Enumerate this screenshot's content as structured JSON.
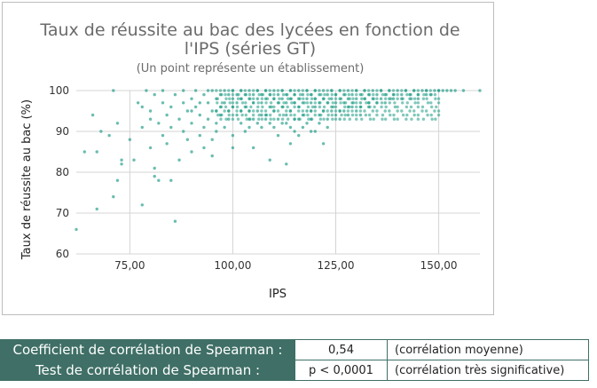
{
  "chart_data": {
    "type": "scatter",
    "title_lines": [
      "Taux de réussite au bac des lycées en fonction de",
      "l'IPS (séries GT)"
    ],
    "subtitle": "(Un point représente un établissement)",
    "xlabel": "IPS",
    "ylabel": "Taux de réussite au bac (%)",
    "x_ticks": [
      "75,00",
      "100,00",
      "125,00",
      "150,00"
    ],
    "x_tick_values": [
      75,
      100,
      125,
      150
    ],
    "y_ticks": [
      "60",
      "70",
      "80",
      "90",
      "100"
    ],
    "y_tick_values": [
      60,
      70,
      80,
      90,
      100
    ],
    "xlim": [
      62,
      160
    ],
    "ylim": [
      60,
      100
    ],
    "grid": true,
    "point_color": "#1a9a84",
    "points": [
      [
        62,
        66
      ],
      [
        64,
        85
      ],
      [
        66,
        94
      ],
      [
        67,
        71
      ],
      [
        67,
        85
      ],
      [
        68,
        90
      ],
      [
        70,
        89
      ],
      [
        71,
        74
      ],
      [
        72,
        78
      ],
      [
        73,
        82
      ],
      [
        73,
        83
      ],
      [
        72,
        92
      ],
      [
        71,
        100
      ],
      [
        75,
        88
      ],
      [
        76,
        83
      ],
      [
        77,
        97
      ],
      [
        78,
        96
      ],
      [
        78,
        91
      ],
      [
        78,
        72
      ],
      [
        79,
        100
      ],
      [
        80,
        95
      ],
      [
        80,
        93
      ],
      [
        80,
        86
      ],
      [
        81,
        79
      ],
      [
        81,
        81
      ],
      [
        81,
        99
      ],
      [
        82,
        92
      ],
      [
        82,
        78
      ],
      [
        83,
        89
      ],
      [
        83,
        97
      ],
      [
        83,
        100
      ],
      [
        84,
        94
      ],
      [
        84,
        87
      ],
      [
        85,
        78
      ],
      [
        85,
        91
      ],
      [
        85,
        96
      ],
      [
        86,
        68
      ],
      [
        86,
        99
      ],
      [
        87,
        93
      ],
      [
        87,
        83
      ],
      [
        88,
        97
      ],
      [
        88,
        90
      ],
      [
        88,
        100
      ],
      [
        89,
        95
      ],
      [
        89,
        88
      ],
      [
        90,
        92
      ],
      [
        90,
        98
      ],
      [
        90,
        85
      ],
      [
        91,
        96
      ],
      [
        91,
        100
      ],
      [
        92,
        89
      ],
      [
        92,
        94
      ],
      [
        93,
        99
      ],
      [
        93,
        91
      ],
      [
        93,
        86
      ],
      [
        94,
        97
      ],
      [
        94,
        93
      ],
      [
        95,
        100
      ],
      [
        95,
        95
      ],
      [
        95,
        88
      ],
      [
        96,
        98
      ],
      [
        96,
        92
      ],
      [
        96,
        90
      ],
      [
        97,
        99
      ],
      [
        97,
        96
      ],
      [
        97,
        94
      ],
      [
        98,
        100
      ],
      [
        98,
        97
      ],
      [
        98,
        91
      ],
      [
        99,
        99
      ],
      [
        99,
        95
      ],
      [
        99,
        93
      ],
      [
        100,
        100
      ],
      [
        100,
        98
      ],
      [
        100,
        96
      ],
      [
        100,
        89
      ],
      [
        101,
        99
      ],
      [
        101,
        97
      ],
      [
        101,
        94
      ],
      [
        102,
        100
      ],
      [
        102,
        98
      ],
      [
        102,
        92
      ],
      [
        103,
        99
      ],
      [
        103,
        96
      ],
      [
        103,
        90
      ],
      [
        104,
        100
      ],
      [
        104,
        98
      ],
      [
        104,
        95
      ],
      [
        105,
        99
      ],
      [
        105,
        97
      ],
      [
        105,
        93
      ],
      [
        105,
        86
      ],
      [
        106,
        100
      ],
      [
        106,
        98
      ],
      [
        106,
        95
      ],
      [
        107,
        99
      ],
      [
        107,
        97
      ],
      [
        107,
        91
      ],
      [
        108,
        100
      ],
      [
        108,
        98
      ],
      [
        108,
        94
      ],
      [
        109,
        99
      ],
      [
        109,
        96
      ],
      [
        109,
        92
      ],
      [
        109,
        83
      ],
      [
        110,
        100
      ],
      [
        110,
        98
      ],
      [
        110,
        95
      ],
      [
        111,
        99
      ],
      [
        111,
        97
      ],
      [
        111,
        93
      ],
      [
        111,
        89
      ],
      [
        112,
        100
      ],
      [
        112,
        98
      ],
      [
        112,
        96
      ],
      [
        113,
        99
      ],
      [
        113,
        97
      ],
      [
        113,
        94
      ],
      [
        113,
        82
      ],
      [
        114,
        100
      ],
      [
        114,
        98
      ],
      [
        114,
        95
      ],
      [
        114,
        91
      ],
      [
        115,
        99
      ],
      [
        115,
        97
      ],
      [
        115,
        93
      ],
      [
        116,
        100
      ],
      [
        116,
        98
      ],
      [
        116,
        96
      ],
      [
        116,
        89
      ],
      [
        117,
        99
      ],
      [
        117,
        97
      ],
      [
        117,
        94
      ],
      [
        118,
        100
      ],
      [
        118,
        98
      ],
      [
        118,
        95
      ],
      [
        118,
        92
      ],
      [
        119,
        99
      ],
      [
        119,
        97
      ],
      [
        119,
        93
      ],
      [
        120,
        100
      ],
      [
        120,
        98
      ],
      [
        120,
        96
      ],
      [
        120,
        90
      ],
      [
        121,
        99
      ],
      [
        121,
        97
      ],
      [
        121,
        94
      ],
      [
        122,
        100
      ],
      [
        122,
        98
      ],
      [
        122,
        95
      ],
      [
        122,
        87
      ],
      [
        123,
        99
      ],
      [
        123,
        97
      ],
      [
        123,
        93
      ],
      [
        124,
        100
      ],
      [
        124,
        98
      ],
      [
        124,
        96
      ],
      [
        125,
        99
      ],
      [
        125,
        97
      ],
      [
        125,
        94
      ],
      [
        126,
        100
      ],
      [
        126,
        98
      ],
      [
        126,
        95
      ],
      [
        127,
        99
      ],
      [
        127,
        97
      ],
      [
        128,
        100
      ],
      [
        128,
        98
      ],
      [
        128,
        96
      ],
      [
        129,
        99
      ],
      [
        129,
        97
      ],
      [
        130,
        100
      ],
      [
        130,
        98
      ],
      [
        130,
        95
      ],
      [
        131,
        99
      ],
      [
        131,
        97
      ],
      [
        132,
        100
      ],
      [
        132,
        98
      ],
      [
        133,
        99
      ],
      [
        133,
        97
      ],
      [
        134,
        100
      ],
      [
        134,
        98
      ],
      [
        135,
        99
      ],
      [
        136,
        100
      ],
      [
        136,
        98
      ],
      [
        137,
        99
      ],
      [
        138,
        100
      ],
      [
        138,
        98
      ],
      [
        139,
        99
      ],
      [
        140,
        100
      ],
      [
        141,
        99
      ],
      [
        142,
        100
      ],
      [
        143,
        99
      ],
      [
        144,
        100
      ],
      [
        145,
        99
      ],
      [
        146,
        100
      ],
      [
        147,
        100
      ],
      [
        148,
        99
      ],
      [
        149,
        100
      ],
      [
        150,
        100
      ],
      [
        151,
        100
      ],
      [
        152,
        100
      ],
      [
        153,
        100
      ],
      [
        154,
        100
      ],
      [
        156,
        100
      ],
      [
        160,
        100
      ],
      [
        104,
        91
      ],
      [
        106,
        92
      ],
      [
        108,
        93
      ],
      [
        110,
        91
      ],
      [
        112,
        92
      ],
      [
        115,
        90
      ],
      [
        117,
        91
      ],
      [
        119,
        90
      ],
      [
        121,
        92
      ],
      [
        123,
        91
      ],
      [
        126,
        93
      ],
      [
        128,
        94
      ],
      [
        96,
        95
      ],
      [
        94,
        100
      ],
      [
        92,
        97
      ],
      [
        90,
        95
      ],
      [
        102,
        95
      ],
      [
        104,
        93
      ],
      [
        107,
        94
      ],
      [
        113,
        92
      ],
      [
        116,
        93
      ],
      [
        119,
        95
      ],
      [
        124,
        95
      ],
      [
        127,
        95
      ],
      [
        129,
        96
      ],
      [
        131,
        96
      ],
      [
        133,
        96
      ],
      [
        135,
        97
      ],
      [
        137,
        97
      ],
      [
        139,
        98
      ],
      [
        141,
        98
      ],
      [
        143,
        98
      ],
      [
        145,
        98
      ],
      [
        147,
        99
      ],
      [
        114,
        87
      ],
      [
        100,
        86
      ],
      [
        95,
        84
      ],
      [
        131,
        94
      ]
    ]
  },
  "stats": {
    "rows": [
      {
        "label": "Coefficient de corrélation de Spearman :",
        "value": "0,54",
        "note": "(corrélation moyenne)"
      },
      {
        "label": "Test de corrélation de Spearman :",
        "value": "p < 0,0001",
        "note": "(corrélation très significative)"
      }
    ]
  }
}
